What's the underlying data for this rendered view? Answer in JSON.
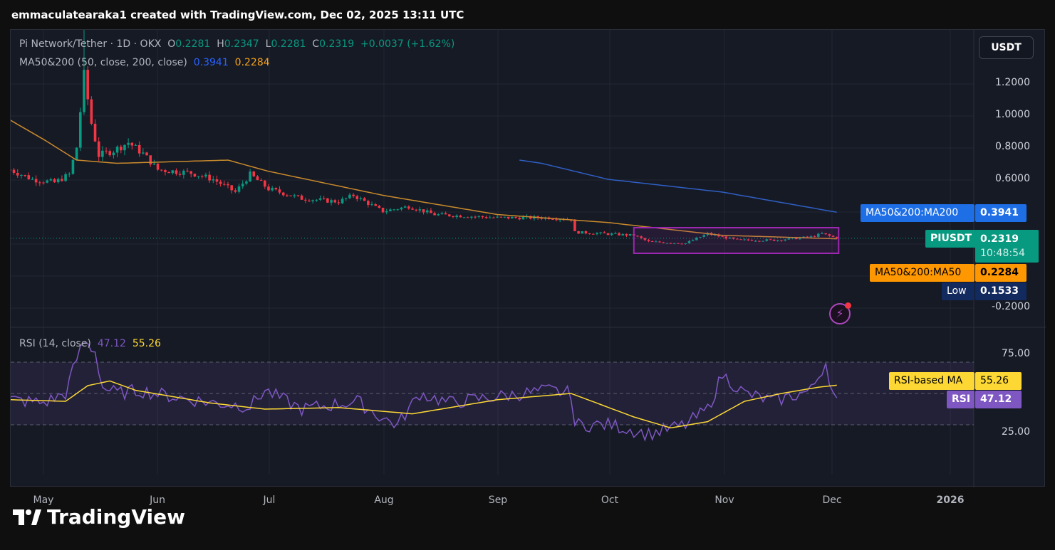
{
  "header": "emmaculatearaka1 created with TradingView.com, Dec 02, 2025 13:11 UTC",
  "legend": {
    "symbol": "Pi Network/Tether · 1D · OKX",
    "o_label": "O",
    "o": "0.2281",
    "h_label": "H",
    "h": "0.2347",
    "l_label": "L",
    "l": "0.2281",
    "c_label": "C",
    "c": "0.2319",
    "change": "+0.0037 (+1.62%)",
    "ma_label": "MA50&200 (50, close, 200, close)",
    "ma200": "0.3941",
    "ma50": "0.2284",
    "rsi_label": "RSI (14, close)",
    "rsi": "47.12",
    "rsi_ma": "55.26"
  },
  "currency_button": "USDT",
  "price_axis": [
    "1.2000",
    "1.0000",
    "0.8000",
    "0.6000",
    "-0.2000"
  ],
  "rsi_axis": [
    "75.00",
    "25.00"
  ],
  "time_axis": [
    "May",
    "Jun",
    "Jul",
    "Aug",
    "Sep",
    "Oct",
    "Nov",
    "Dec",
    "2026"
  ],
  "tags": {
    "ma200_label": "MA50&200:MA200",
    "ma200_val": "0.3941",
    "sym_label": "PIUSDT",
    "sym_val": "0.2319",
    "countdown": "10:48:54",
    "ma50_label": "MA50&200:MA50",
    "ma50_val": "0.2284",
    "low_label": "Low",
    "low_val": "0.1533",
    "rsima_label": "RSI-based MA",
    "rsima_val": "55.26",
    "rsi_label": "RSI",
    "rsi_val": "47.12"
  },
  "logo": "TradingView",
  "colors": {
    "up": "#089981",
    "down": "#f23645",
    "ma50": "#f7a21b",
    "ma200": "#2962ff",
    "rsi": "#7e57c2",
    "rsi_ma": "#fdd835",
    "box": "#9c27b0"
  },
  "chart_data": {
    "type": "candlestick",
    "title": "Pi Network/Tether · 1D · OKX",
    "x_unit": "days since May 1, 2025",
    "price_keypoints": [
      [
        -9,
        0.66
      ],
      [
        -3,
        0.6
      ],
      [
        3,
        0.58
      ],
      [
        7,
        0.63
      ],
      [
        9,
        0.8
      ],
      [
        11,
        1.25
      ],
      [
        13,
        0.95
      ],
      [
        15,
        0.75
      ],
      [
        19,
        0.78
      ],
      [
        23,
        0.83
      ],
      [
        27,
        0.76
      ],
      [
        31,
        0.66
      ],
      [
        40,
        0.64
      ],
      [
        46,
        0.6
      ],
      [
        52,
        0.52
      ],
      [
        56,
        0.63
      ],
      [
        61,
        0.54
      ],
      [
        70,
        0.48
      ],
      [
        80,
        0.46
      ],
      [
        84,
        0.5
      ],
      [
        92,
        0.4
      ],
      [
        99,
        0.43
      ],
      [
        106,
        0.38
      ],
      [
        123,
        0.36
      ],
      [
        137,
        0.36
      ],
      [
        143,
        0.35
      ],
      [
        144,
        0.27
      ],
      [
        160,
        0.25
      ],
      [
        164,
        0.21
      ],
      [
        174,
        0.2
      ],
      [
        180,
        0.26
      ],
      [
        188,
        0.22
      ],
      [
        198,
        0.22
      ],
      [
        208,
        0.24
      ],
      [
        211,
        0.26
      ],
      [
        215,
        0.2319
      ]
    ],
    "ma50_keypoints": [
      [
        -9,
        0.97
      ],
      [
        0,
        0.85
      ],
      [
        9,
        0.72
      ],
      [
        20,
        0.7
      ],
      [
        50,
        0.72
      ],
      [
        61,
        0.65
      ],
      [
        92,
        0.5
      ],
      [
        123,
        0.38
      ],
      [
        153,
        0.33
      ],
      [
        184,
        0.25
      ],
      [
        215,
        0.2284
      ]
    ],
    "ma200_keypoints": [
      [
        129,
        0.72
      ],
      [
        135,
        0.7
      ],
      [
        153,
        0.6
      ],
      [
        184,
        0.52
      ],
      [
        215,
        0.3941
      ]
    ],
    "rsi_keypoints": [
      [
        -9,
        46
      ],
      [
        0,
        44
      ],
      [
        6,
        50
      ],
      [
        9,
        72
      ],
      [
        11,
        83
      ],
      [
        14,
        77
      ],
      [
        16,
        54
      ],
      [
        20,
        50
      ],
      [
        26,
        52
      ],
      [
        35,
        48
      ],
      [
        46,
        44
      ],
      [
        56,
        42
      ],
      [
        60,
        52
      ],
      [
        70,
        40
      ],
      [
        85,
        45
      ],
      [
        92,
        34
      ],
      [
        96,
        30
      ],
      [
        102,
        50
      ],
      [
        110,
        44
      ],
      [
        123,
        48
      ],
      [
        137,
        52
      ],
      [
        143,
        50
      ],
      [
        144,
        30
      ],
      [
        154,
        30
      ],
      [
        164,
        24
      ],
      [
        174,
        30
      ],
      [
        180,
        40
      ],
      [
        184,
        62
      ],
      [
        190,
        50
      ],
      [
        198,
        45
      ],
      [
        208,
        52
      ],
      [
        212,
        70
      ],
      [
        214,
        50
      ],
      [
        215,
        47.12
      ]
    ],
    "rsi_ma_keypoints": [
      [
        -9,
        46
      ],
      [
        6,
        45
      ],
      [
        12,
        55
      ],
      [
        18,
        58
      ],
      [
        25,
        52
      ],
      [
        45,
        44
      ],
      [
        60,
        40
      ],
      [
        80,
        41
      ],
      [
        100,
        37
      ],
      [
        123,
        46
      ],
      [
        143,
        50
      ],
      [
        160,
        35
      ],
      [
        170,
        28
      ],
      [
        180,
        32
      ],
      [
        190,
        45
      ],
      [
        200,
        50
      ],
      [
        210,
        54
      ],
      [
        215,
        55.26
      ]
    ],
    "ylim_price": [
      -0.2,
      1.3
    ],
    "ylim_rsi": [
      15,
      85
    ],
    "rsi_bands": [
      30,
      70
    ],
    "low": 0.1533,
    "last": 0.2319
  }
}
